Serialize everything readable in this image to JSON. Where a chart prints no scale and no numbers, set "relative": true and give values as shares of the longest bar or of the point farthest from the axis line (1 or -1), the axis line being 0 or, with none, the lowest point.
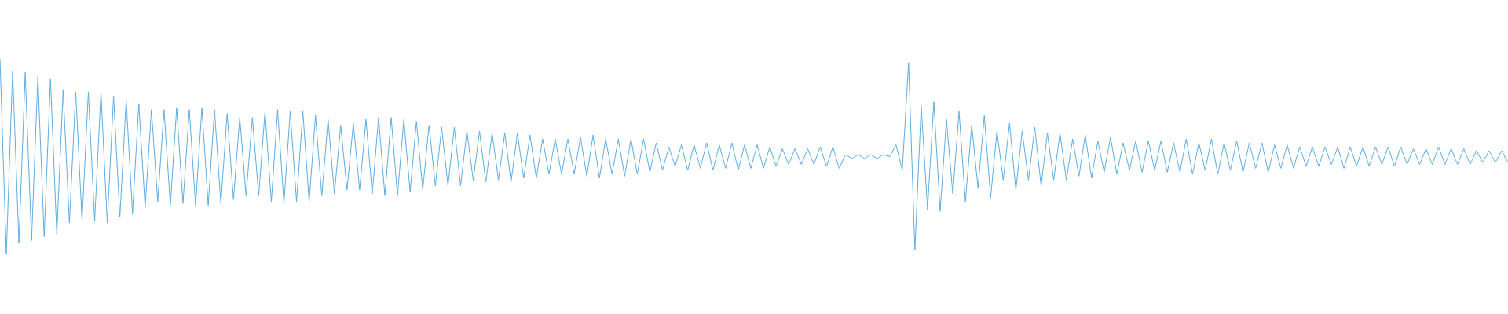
{
  "chart_data": {
    "type": "line",
    "relative": true,
    "color": "#5dade2",
    "categories": [
      null,
      null,
      null,
      null,
      null,
      null,
      null,
      null,
      null,
      null,
      null,
      null,
      null,
      null,
      null,
      null,
      null,
      null,
      null,
      null,
      null,
      null,
      null,
      null,
      null,
      null,
      null,
      null,
      null,
      null,
      null,
      null,
      null,
      null,
      null,
      null,
      null,
      null,
      null,
      null,
      null,
      null,
      null,
      null,
      null,
      null,
      null,
      null,
      null,
      null,
      null,
      null,
      null,
      null,
      null,
      null,
      null,
      null,
      null,
      null,
      null,
      null,
      null,
      null,
      null,
      null,
      null,
      null,
      null,
      null,
      null,
      null,
      null,
      null,
      null,
      null,
      null,
      null,
      null,
      null,
      null,
      null,
      null,
      null,
      null,
      null,
      null,
      null,
      null,
      null,
      null,
      null,
      null,
      null,
      null,
      null,
      null,
      null,
      null,
      null,
      null,
      null,
      null,
      null,
      null,
      null,
      null,
      null,
      null,
      null,
      null,
      null,
      null,
      null,
      null,
      null,
      null,
      null,
      null,
      null,
      null,
      null,
      null,
      null,
      null,
      null,
      null,
      null,
      null,
      null,
      null,
      null,
      null,
      null,
      null,
      null,
      null,
      null,
      null,
      null,
      null,
      null,
      null,
      null,
      null,
      null,
      null,
      null,
      null,
      null,
      null,
      null,
      null,
      null,
      null,
      null,
      null,
      null,
      null,
      null,
      null,
      null,
      null,
      null,
      null,
      null,
      null,
      null,
      null,
      null,
      null,
      null,
      null,
      null,
      null,
      null,
      null,
      null,
      null,
      null,
      null,
      null,
      null,
      null,
      null,
      null,
      null,
      null,
      null,
      null,
      null,
      null,
      null,
      null,
      null,
      null,
      null,
      null,
      null,
      null,
      null,
      null,
      null,
      null,
      null,
      null,
      null,
      null,
      null,
      null,
      null,
      null,
      null,
      null,
      null,
      null,
      null,
      null,
      null,
      null,
      null,
      null,
      null,
      null,
      null,
      null,
      null,
      null,
      null,
      null,
      null,
      null,
      null,
      null,
      null,
      null,
      null,
      null,
      null,
      null
    ],
    "values": [
      1.0,
      0.0,
      0.94,
      0.06,
      0.93,
      0.07,
      0.91,
      0.09,
      0.9,
      0.1,
      0.84,
      0.16,
      0.83,
      0.17,
      0.83,
      0.17,
      0.83,
      0.16,
      0.81,
      0.19,
      0.79,
      0.21,
      0.77,
      0.24,
      0.74,
      0.27,
      0.74,
      0.25,
      0.75,
      0.26,
      0.74,
      0.25,
      0.75,
      0.25,
      0.74,
      0.26,
      0.72,
      0.28,
      0.7,
      0.3,
      0.7,
      0.3,
      0.73,
      0.27,
      0.74,
      0.26,
      0.73,
      0.27,
      0.73,
      0.27,
      0.71,
      0.3,
      0.69,
      0.31,
      0.66,
      0.33,
      0.67,
      0.33,
      0.69,
      0.31,
      0.7,
      0.3,
      0.7,
      0.3,
      0.69,
      0.32,
      0.68,
      0.33,
      0.66,
      0.35,
      0.65,
      0.35,
      0.65,
      0.35,
      0.63,
      0.38,
      0.63,
      0.37,
      0.62,
      0.38,
      0.62,
      0.37,
      0.62,
      0.39,
      0.61,
      0.39,
      0.59,
      0.41,
      0.59,
      0.41,
      0.59,
      0.41,
      0.6,
      0.4,
      0.61,
      0.39,
      0.59,
      0.41,
      0.59,
      0.4,
      0.59,
      0.41,
      0.59,
      0.42,
      0.57,
      0.43,
      0.55,
      0.45,
      0.56,
      0.43,
      0.56,
      0.44,
      0.57,
      0.43,
      0.56,
      0.44,
      0.57,
      0.43,
      0.56,
      0.44,
      0.56,
      0.44,
      0.55,
      0.45,
      0.54,
      0.46,
      0.54,
      0.46,
      0.54,
      0.46,
      0.55,
      0.45,
      0.55,
      0.44,
      0.51,
      0.49,
      0.51,
      0.49,
      0.51,
      0.49,
      0.51,
      0.5,
      0.56,
      0.43,
      0.98,
      0.02,
      0.76,
      0.23,
      0.78,
      0.22,
      0.69,
      0.31,
      0.73,
      0.27,
      0.66,
      0.34,
      0.71,
      0.29,
      0.63,
      0.38,
      0.67,
      0.33,
      0.63,
      0.38,
      0.65,
      0.35,
      0.62,
      0.38,
      0.62,
      0.38,
      0.59,
      0.4,
      0.61,
      0.39,
      0.58,
      0.42,
      0.6,
      0.41,
      0.57,
      0.43,
      0.58,
      0.42,
      0.58,
      0.43,
      0.58,
      0.42,
      0.57,
      0.42,
      0.59,
      0.41,
      0.57,
      0.43,
      0.59,
      0.41,
      0.57,
      0.43,
      0.58,
      0.42,
      0.57,
      0.44,
      0.57,
      0.42,
      0.56,
      0.44,
      0.56,
      0.44,
      0.55,
      0.45,
      0.55,
      0.45,
      0.55,
      0.46,
      0.55,
      0.44,
      0.55,
      0.45,
      0.55,
      0.45,
      0.55,
      0.46,
      0.55,
      0.45,
      0.55,
      0.46,
      0.54,
      0.46,
      0.54,
      0.46,
      0.55,
      0.46,
      0.54,
      0.46,
      0.54,
      0.46,
      0.53,
      0.47,
      0.53,
      0.47,
      0.53,
      0.47
    ]
  }
}
